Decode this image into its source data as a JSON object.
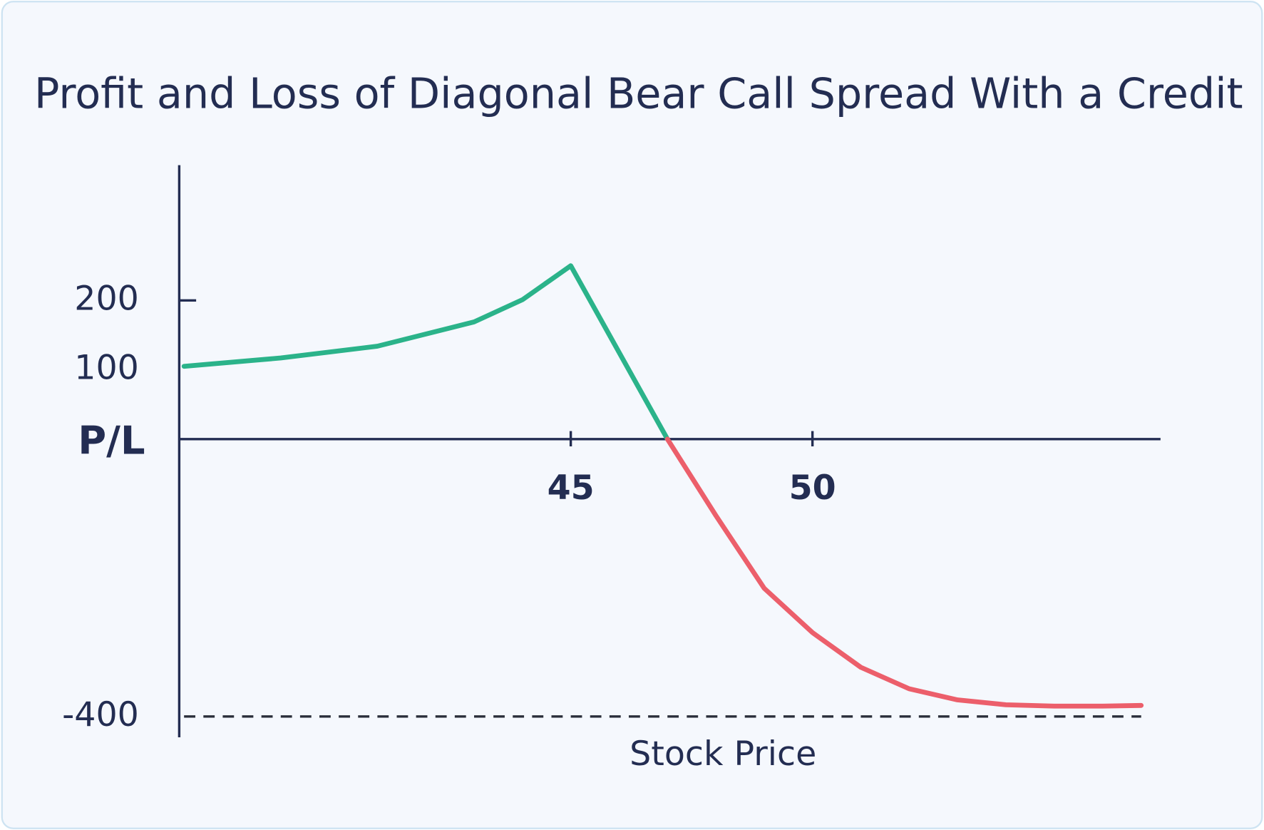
{
  "chart_data": {
    "type": "line",
    "title": "Profit and Loss of Diagonal Bear Call Spread With a Credit",
    "x_label": "Stock Price",
    "y_label": "P/L",
    "x": [
      37,
      39,
      41,
      43,
      44,
      45,
      47,
      48,
      49,
      50,
      51,
      52,
      53,
      54,
      55,
      56,
      56.8
    ],
    "series": [
      {
        "color": "#2bb38a",
        "values": [
          105,
          117,
          134,
          169,
          201,
          250,
          0,
          null,
          null,
          null,
          null,
          null,
          null,
          null,
          null,
          null,
          null
        ]
      },
      {
        "color": "#ec5f6b",
        "values": [
          null,
          null,
          null,
          null,
          null,
          null,
          0,
          -110,
          -215,
          -279,
          -329,
          -360,
          -376,
          -383,
          -385,
          -385,
          -384
        ]
      }
    ],
    "xlim": [
      36.9,
      57.2
    ],
    "ylim": [
      -430,
      395
    ],
    "xticks": [
      45,
      50
    ],
    "yticks": [
      -400,
      100,
      200
    ],
    "ytick_marks": [
      200
    ],
    "dashed_hline": -400,
    "grid": false
  }
}
